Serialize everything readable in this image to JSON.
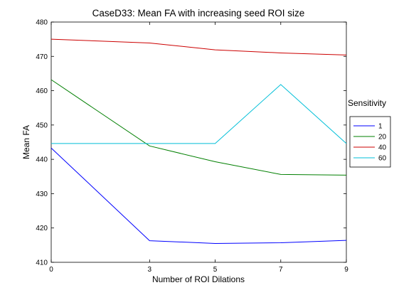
{
  "chart_data": {
    "type": "line",
    "title": "CaseD33: Mean FA with increasing seed ROI size",
    "xlabel": "Number of ROI Dilations",
    "ylabel": "Mean FA",
    "xlim": [
      0,
      9
    ],
    "ylim": [
      410,
      480
    ],
    "xticks": [
      0,
      3,
      5,
      7,
      9
    ],
    "yticks": [
      410,
      420,
      430,
      440,
      450,
      460,
      470,
      480
    ],
    "grid": false,
    "legend": {
      "title": "Sensitivity",
      "placement": "outside-right"
    },
    "x": [
      0,
      3,
      5,
      7,
      9
    ],
    "series": [
      {
        "name": "1",
        "color": "#0000ff",
        "values": [
          443.3,
          416.3,
          415.5,
          415.7,
          416.4
        ]
      },
      {
        "name": "20",
        "color": "#007f00",
        "values": [
          463.2,
          443.9,
          439.3,
          435.6,
          435.4
        ]
      },
      {
        "name": "40",
        "color": "#cc0000",
        "values": [
          475.0,
          473.9,
          471.9,
          471.0,
          470.4
        ]
      },
      {
        "name": "60",
        "color": "#00bfd8",
        "values": [
          444.6,
          444.6,
          444.6,
          461.8,
          444.6
        ]
      }
    ]
  }
}
